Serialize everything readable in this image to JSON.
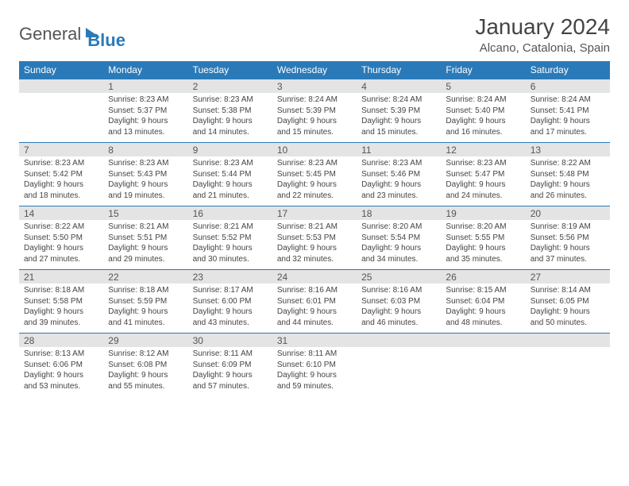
{
  "logo": {
    "text1": "General",
    "text2": "Blue"
  },
  "title": "January 2024",
  "location": "Alcano, Catalonia, Spain",
  "day_headers": [
    "Sunday",
    "Monday",
    "Tuesday",
    "Wednesday",
    "Thursday",
    "Friday",
    "Saturday"
  ],
  "colors": {
    "header_bg": "#2a7ab9",
    "header_text": "#ffffff",
    "daynum_bg": "#e4e4e4",
    "border": "#2a7ab9",
    "body_text": "#444444"
  },
  "weeks": [
    [
      {
        "num": "",
        "lines": []
      },
      {
        "num": "1",
        "lines": [
          "Sunrise: 8:23 AM",
          "Sunset: 5:37 PM",
          "Daylight: 9 hours",
          "and 13 minutes."
        ]
      },
      {
        "num": "2",
        "lines": [
          "Sunrise: 8:23 AM",
          "Sunset: 5:38 PM",
          "Daylight: 9 hours",
          "and 14 minutes."
        ]
      },
      {
        "num": "3",
        "lines": [
          "Sunrise: 8:24 AM",
          "Sunset: 5:39 PM",
          "Daylight: 9 hours",
          "and 15 minutes."
        ]
      },
      {
        "num": "4",
        "lines": [
          "Sunrise: 8:24 AM",
          "Sunset: 5:39 PM",
          "Daylight: 9 hours",
          "and 15 minutes."
        ]
      },
      {
        "num": "5",
        "lines": [
          "Sunrise: 8:24 AM",
          "Sunset: 5:40 PM",
          "Daylight: 9 hours",
          "and 16 minutes."
        ]
      },
      {
        "num": "6",
        "lines": [
          "Sunrise: 8:24 AM",
          "Sunset: 5:41 PM",
          "Daylight: 9 hours",
          "and 17 minutes."
        ]
      }
    ],
    [
      {
        "num": "7",
        "lines": [
          "Sunrise: 8:23 AM",
          "Sunset: 5:42 PM",
          "Daylight: 9 hours",
          "and 18 minutes."
        ]
      },
      {
        "num": "8",
        "lines": [
          "Sunrise: 8:23 AM",
          "Sunset: 5:43 PM",
          "Daylight: 9 hours",
          "and 19 minutes."
        ]
      },
      {
        "num": "9",
        "lines": [
          "Sunrise: 8:23 AM",
          "Sunset: 5:44 PM",
          "Daylight: 9 hours",
          "and 21 minutes."
        ]
      },
      {
        "num": "10",
        "lines": [
          "Sunrise: 8:23 AM",
          "Sunset: 5:45 PM",
          "Daylight: 9 hours",
          "and 22 minutes."
        ]
      },
      {
        "num": "11",
        "lines": [
          "Sunrise: 8:23 AM",
          "Sunset: 5:46 PM",
          "Daylight: 9 hours",
          "and 23 minutes."
        ]
      },
      {
        "num": "12",
        "lines": [
          "Sunrise: 8:23 AM",
          "Sunset: 5:47 PM",
          "Daylight: 9 hours",
          "and 24 minutes."
        ]
      },
      {
        "num": "13",
        "lines": [
          "Sunrise: 8:22 AM",
          "Sunset: 5:48 PM",
          "Daylight: 9 hours",
          "and 26 minutes."
        ]
      }
    ],
    [
      {
        "num": "14",
        "lines": [
          "Sunrise: 8:22 AM",
          "Sunset: 5:50 PM",
          "Daylight: 9 hours",
          "and 27 minutes."
        ]
      },
      {
        "num": "15",
        "lines": [
          "Sunrise: 8:21 AM",
          "Sunset: 5:51 PM",
          "Daylight: 9 hours",
          "and 29 minutes."
        ]
      },
      {
        "num": "16",
        "lines": [
          "Sunrise: 8:21 AM",
          "Sunset: 5:52 PM",
          "Daylight: 9 hours",
          "and 30 minutes."
        ]
      },
      {
        "num": "17",
        "lines": [
          "Sunrise: 8:21 AM",
          "Sunset: 5:53 PM",
          "Daylight: 9 hours",
          "and 32 minutes."
        ]
      },
      {
        "num": "18",
        "lines": [
          "Sunrise: 8:20 AM",
          "Sunset: 5:54 PM",
          "Daylight: 9 hours",
          "and 34 minutes."
        ]
      },
      {
        "num": "19",
        "lines": [
          "Sunrise: 8:20 AM",
          "Sunset: 5:55 PM",
          "Daylight: 9 hours",
          "and 35 minutes."
        ]
      },
      {
        "num": "20",
        "lines": [
          "Sunrise: 8:19 AM",
          "Sunset: 5:56 PM",
          "Daylight: 9 hours",
          "and 37 minutes."
        ]
      }
    ],
    [
      {
        "num": "21",
        "lines": [
          "Sunrise: 8:18 AM",
          "Sunset: 5:58 PM",
          "Daylight: 9 hours",
          "and 39 minutes."
        ]
      },
      {
        "num": "22",
        "lines": [
          "Sunrise: 8:18 AM",
          "Sunset: 5:59 PM",
          "Daylight: 9 hours",
          "and 41 minutes."
        ]
      },
      {
        "num": "23",
        "lines": [
          "Sunrise: 8:17 AM",
          "Sunset: 6:00 PM",
          "Daylight: 9 hours",
          "and 43 minutes."
        ]
      },
      {
        "num": "24",
        "lines": [
          "Sunrise: 8:16 AM",
          "Sunset: 6:01 PM",
          "Daylight: 9 hours",
          "and 44 minutes."
        ]
      },
      {
        "num": "25",
        "lines": [
          "Sunrise: 8:16 AM",
          "Sunset: 6:03 PM",
          "Daylight: 9 hours",
          "and 46 minutes."
        ]
      },
      {
        "num": "26",
        "lines": [
          "Sunrise: 8:15 AM",
          "Sunset: 6:04 PM",
          "Daylight: 9 hours",
          "and 48 minutes."
        ]
      },
      {
        "num": "27",
        "lines": [
          "Sunrise: 8:14 AM",
          "Sunset: 6:05 PM",
          "Daylight: 9 hours",
          "and 50 minutes."
        ]
      }
    ],
    [
      {
        "num": "28",
        "lines": [
          "Sunrise: 8:13 AM",
          "Sunset: 6:06 PM",
          "Daylight: 9 hours",
          "and 53 minutes."
        ]
      },
      {
        "num": "29",
        "lines": [
          "Sunrise: 8:12 AM",
          "Sunset: 6:08 PM",
          "Daylight: 9 hours",
          "and 55 minutes."
        ]
      },
      {
        "num": "30",
        "lines": [
          "Sunrise: 8:11 AM",
          "Sunset: 6:09 PM",
          "Daylight: 9 hours",
          "and 57 minutes."
        ]
      },
      {
        "num": "31",
        "lines": [
          "Sunrise: 8:11 AM",
          "Sunset: 6:10 PM",
          "Daylight: 9 hours",
          "and 59 minutes."
        ]
      },
      {
        "num": "",
        "lines": []
      },
      {
        "num": "",
        "lines": []
      },
      {
        "num": "",
        "lines": []
      }
    ]
  ]
}
